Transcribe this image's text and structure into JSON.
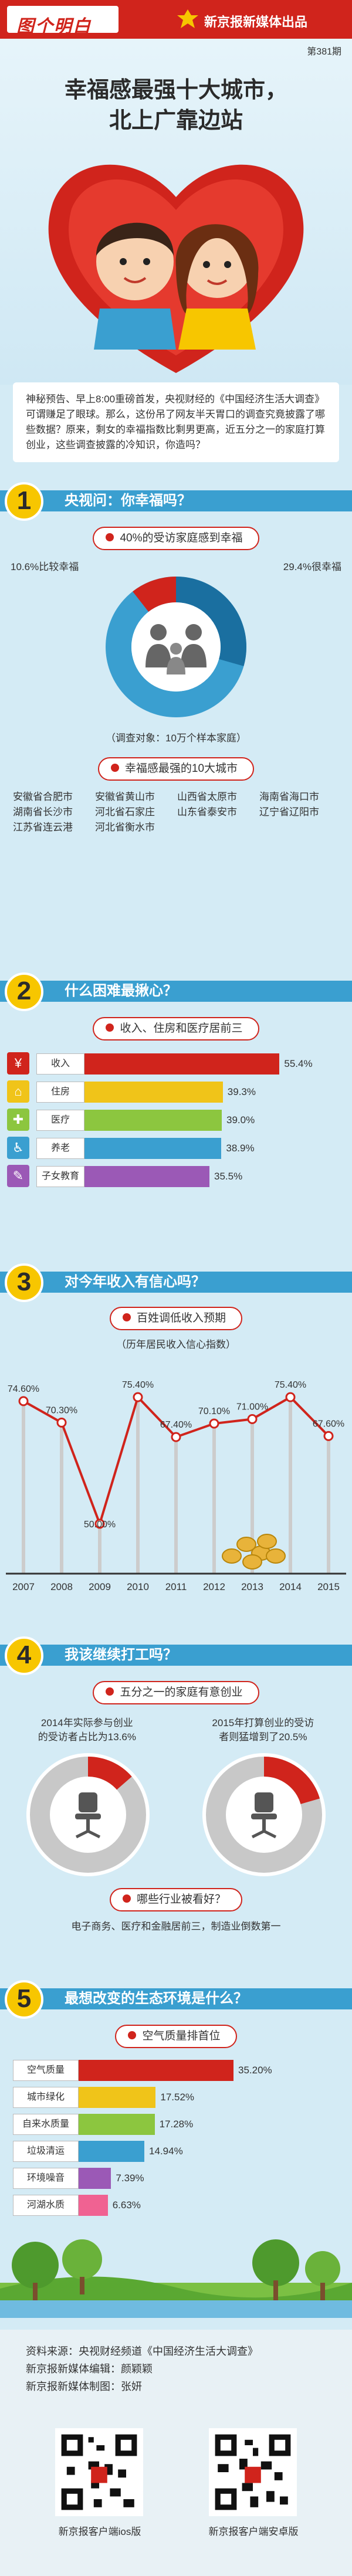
{
  "header": {
    "logo": "图个明白",
    "publisher": "新京报新媒体出品"
  },
  "hero": {
    "issue": "第381期",
    "title_line1": "幸福感最强十大城市，",
    "title_line2": "北上广靠边站"
  },
  "intro": "神秘预告、早上8:00重磅首发，央视财经的《中国经济生活大调查》可谓赚足了眼球。那么，这份吊了网友半天胃口的调查究竟披露了哪些数据？原来，剩女的幸福指数比剩男更高，近五分之一的家庭打算创业，这些调查披露的冷知识，你造吗？",
  "section1": {
    "num": "1",
    "title": "央视问：你幸福吗？",
    "pill": "40%的受访家庭感到幸福",
    "left_label": "10.6%比较幸福",
    "right_label": "29.4%很幸福",
    "survey_note": "（调查对象：10万个样本家庭）",
    "pill2": "幸福感最强的10大城市",
    "cities": [
      "安徽省合肥市",
      "安徽省黄山市",
      "山西省太原市",
      "海南省海口市",
      "湖南省长沙市",
      "河北省石家庄",
      "山东省泰安市",
      "辽宁省辽阳市",
      "江苏省连云港",
      "河北省衡水市"
    ]
  },
  "section2": {
    "num": "2",
    "title": "什么困难最揪心？",
    "pill": "收入、住房和医疗居前三",
    "items": [
      {
        "label": "收入",
        "value": 55.4,
        "text": "55.4%",
        "icon": "¥",
        "icon_name": "yuan-icon",
        "color": "#d0241c",
        "icon_color": "#d0241c",
        "row": "row-income"
      },
      {
        "label": "住房",
        "value": 39.3,
        "text": "39.3%",
        "icon": "⌂",
        "icon_name": "house-icon",
        "color": "#f0c419",
        "icon_color": "#f0c419",
        "row": "row-housing"
      },
      {
        "label": "医疗",
        "value": 39.0,
        "text": "39.0%",
        "icon": "✚",
        "icon_name": "medical-icon",
        "color": "#8cc63f",
        "icon_color": "#8cc63f",
        "row": "row-medical"
      },
      {
        "label": "养老",
        "value": 38.9,
        "text": "38.9%",
        "icon": "♿",
        "icon_name": "elderly-icon",
        "color": "#3a9fd0",
        "icon_color": "#3a9fd0",
        "row": "row-pension"
      },
      {
        "label": "子女教育",
        "value": 35.5,
        "text": "35.5%",
        "icon": "✎",
        "icon_name": "education-icon",
        "color": "#9b59b6",
        "icon_color": "#9b59b6",
        "row": "row-education"
      }
    ]
  },
  "section3": {
    "num": "3",
    "title": "对今年收入有信心吗？",
    "pill": "百姓调低收入预期",
    "subtitle": "（历年居民收入信心指数）",
    "chart_data": {
      "type": "line",
      "x": [
        "2007",
        "2008",
        "2009",
        "2010",
        "2011",
        "2012",
        "2013",
        "2014",
        "2015"
      ],
      "values": [
        74.6,
        70.3,
        50.0,
        75.4,
        67.4,
        70.1,
        71.0,
        75.4,
        67.6
      ],
      "labels": [
        "74.60%",
        "70.30%",
        "50.00%",
        "75.40%",
        "67.40%",
        "70.10%",
        "71.00%",
        "75.40%",
        "67.60%"
      ],
      "ylim": [
        40,
        80
      ]
    }
  },
  "section4": {
    "num": "4",
    "title": "我该继续打工吗？",
    "pill": "五分之一的家庭有意创业",
    "left_text_line1": "2014年实际参与创业",
    "left_text_line2": "的受访者占比为13.6%",
    "right_text_line1": "2015年打算创业的受访",
    "right_text_line2": "者则猛增到了20.5%",
    "left_value": 13.6,
    "right_value": 20.5,
    "pill2": "哪些行业被看好？",
    "industries": "电子商务、医疗和金融居前三，制造业倒数第一"
  },
  "section5": {
    "num": "5",
    "title": "最想改变的生态环境是什么？",
    "pill": "空气质量排首位",
    "items": [
      {
        "label": "空气质量",
        "value": 35.2,
        "text": "35.20%",
        "color": "#d0241c",
        "row": "row-air"
      },
      {
        "label": "城市绿化",
        "value": 17.52,
        "text": "17.52%",
        "color": "#f0c419",
        "row": "row-green"
      },
      {
        "label": "自来水质量",
        "value": 17.28,
        "text": "17.28%",
        "color": "#8cc63f",
        "row": "row-water"
      },
      {
        "label": "垃圾清运",
        "value": 14.94,
        "text": "14.94%",
        "color": "#3a9fd0",
        "row": "row-garbage"
      },
      {
        "label": "环境噪音",
        "value": 7.39,
        "text": "7.39%",
        "color": "#9b59b6",
        "row": "row-noise"
      },
      {
        "label": "河湖水质",
        "value": 6.63,
        "text": "6.63%",
        "color": "#f06292",
        "row": "row-river"
      }
    ]
  },
  "footer": {
    "source": "资料来源：央视财经频道《中国经济生活大调查》",
    "editor": "新京报新媒体编辑：颜颖颖",
    "designer": "新京报新媒体制图：张妍",
    "qr_ios": "新京报客户端ios版",
    "qr_android": "新京报客户端安卓版"
  }
}
